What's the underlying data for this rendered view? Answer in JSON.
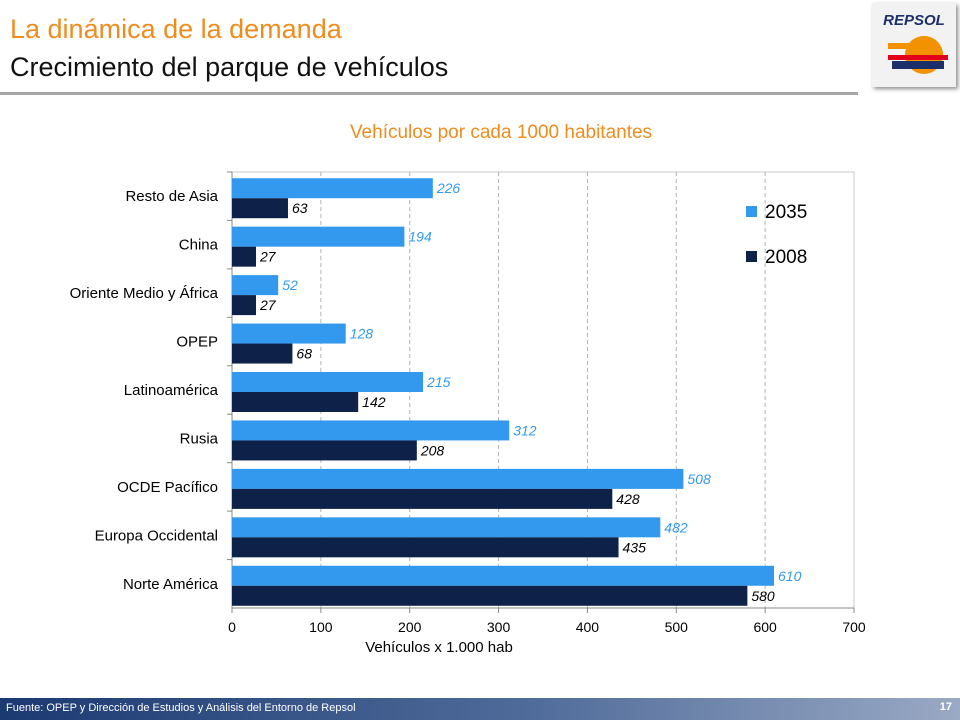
{
  "slide": {
    "title_line1": "La dinámica de la demanda",
    "title_line2": "Crecimiento del parque de vehículos",
    "source": "Fuente: OPEP y Dirección de Estudios y Análisis del Entorno de Repsol",
    "page_number": "17",
    "logo_text": "REPSOL"
  },
  "colors": {
    "accent_orange": "#f08c1e",
    "series_2035": "#3399ee",
    "series_2008": "#0d2149",
    "label_2035": "#3399ee",
    "label_2008": "#000000"
  },
  "chart_data": {
    "type": "bar",
    "orientation": "horizontal",
    "title": "Vehículos por cada 1000 habitantes",
    "xlabel": "Vehículos x 1.000 hab",
    "ylabel": "",
    "xlim": [
      0,
      700
    ],
    "xticks": [
      0,
      100,
      200,
      300,
      400,
      500,
      600,
      700
    ],
    "grid": "vertical dashed",
    "legend_position": "top-right",
    "categories": [
      "Resto de Asia",
      "China",
      "Oriente Medio y África",
      "OPEP",
      "Latinoamérica",
      "Rusia",
      "OCDE Pacífico",
      "Europa Occidental",
      "Norte América"
    ],
    "series": [
      {
        "name": "2035",
        "values": [
          226,
          194,
          52,
          128,
          215,
          312,
          508,
          482,
          610
        ]
      },
      {
        "name": "2008",
        "values": [
          63,
          27,
          27,
          68,
          142,
          208,
          428,
          435,
          580
        ]
      }
    ]
  }
}
